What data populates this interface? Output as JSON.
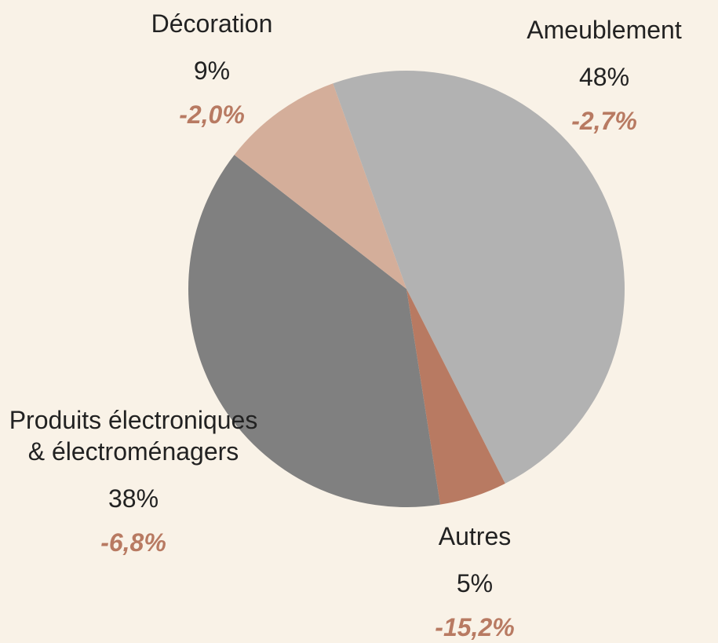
{
  "chart_data": {
    "type": "pie",
    "categories": [
      "Ameublement",
      "Autres",
      "Produits électroniques & électroménagers",
      "Décoration"
    ],
    "values": [
      48,
      5,
      38,
      9
    ],
    "value_labels": [
      "48%",
      "5%",
      "38%",
      "9%"
    ],
    "changes": [
      "-2,7%",
      "-15,2%",
      "-6,8%",
      "-2,0%"
    ],
    "colors": [
      "#b2b2b2",
      "#b87a62",
      "#808080",
      "#d4ae9a"
    ],
    "change_color": "#b87a62"
  }
}
